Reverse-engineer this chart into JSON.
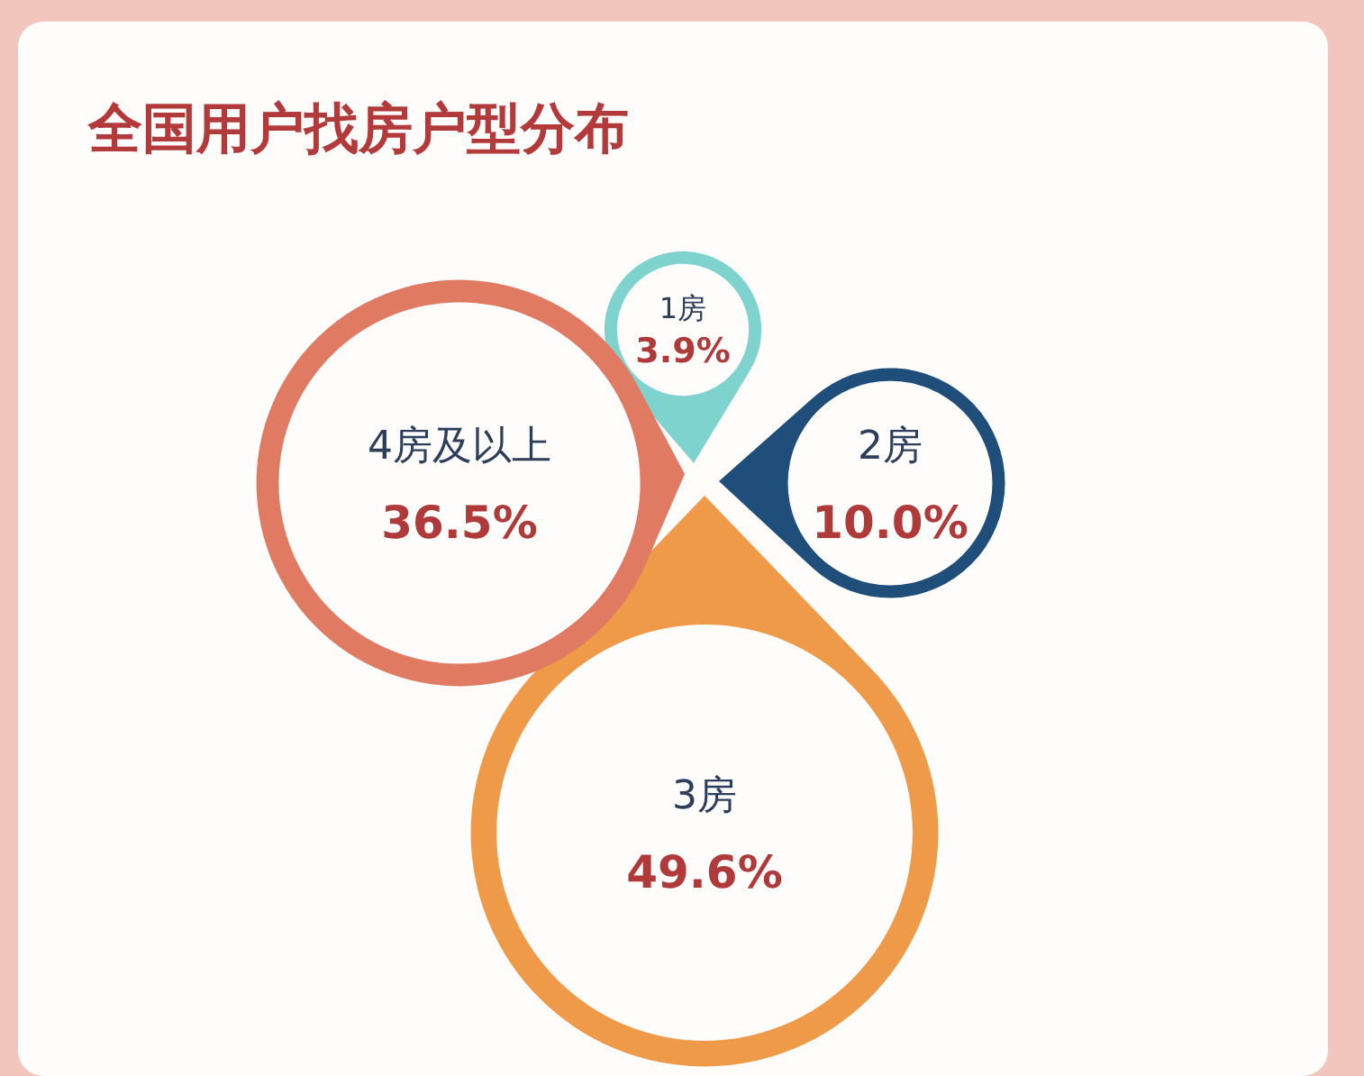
{
  "chart_data": {
    "type": "other",
    "title": "全国用户找房户型分布",
    "categories": [
      "1房",
      "2房",
      "3房",
      "4房及以上"
    ],
    "values": [
      3.9,
      10.0,
      49.6,
      36.5
    ],
    "value_labels": [
      "3.9%",
      "10.0%",
      "49.6%",
      "36.5%"
    ],
    "colors": [
      "#7fd3cf",
      "#1f4e7a",
      "#ef9a48",
      "#e07a62"
    ]
  }
}
